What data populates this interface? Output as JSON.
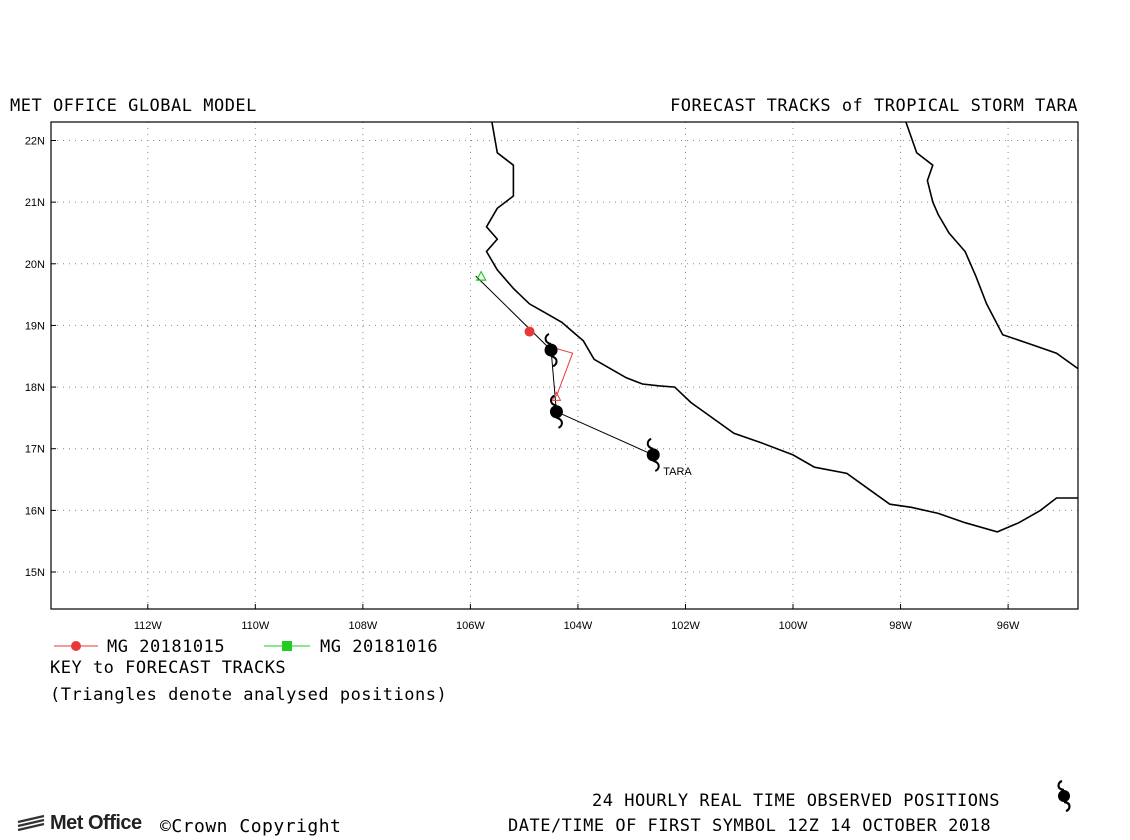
{
  "header": {
    "left_title": "MET OFFICE GLOBAL MODEL",
    "right_title": "FORECAST TRACKS of TROPICAL STORM TARA"
  },
  "map": {
    "lon_range": [
      -113.8,
      -94.7
    ],
    "lat_range": [
      14.4,
      22.3
    ],
    "lat_ticks": [
      "15N",
      "16N",
      "17N",
      "18N",
      "19N",
      "20N",
      "21N",
      "22N"
    ],
    "lon_ticks": [
      "112W",
      "110W",
      "108W",
      "106W",
      "104W",
      "102W",
      "100W",
      "98W",
      "96W"
    ],
    "grid": true,
    "storm_label": "TARA",
    "colors": {
      "mg_20181015": "#e8393a",
      "mg_20181016": "#22cc22",
      "observed": "#000000",
      "coast": "#000000"
    }
  },
  "tracks": {
    "observed": [
      [
        -102.6,
        16.9
      ],
      [
        -104.4,
        17.6
      ],
      [
        -104.5,
        18.6
      ]
    ],
    "analysed_line": [
      [
        -104.5,
        18.6
      ],
      [
        -105.9,
        19.8
      ]
    ],
    "mg_20181015": {
      "start": [
        -104.9,
        18.9
      ],
      "line": [
        [
          -104.5,
          18.65
        ],
        [
          -104.1,
          18.55
        ],
        [
          -104.4,
          17.85
        ]
      ]
    },
    "mg_20181016": {
      "analysed_triangle": [
        -105.8,
        19.8
      ]
    }
  },
  "legend": {
    "items": [
      {
        "label": "MG 20181015",
        "color": "#e8393a",
        "marker": "circle"
      },
      {
        "label": "MG 20181016",
        "color": "#22cc22",
        "marker": "square"
      }
    ],
    "key_title": "KEY to FORECAST TRACKS",
    "key_note": "(Triangles denote analysed positions)"
  },
  "footer": {
    "logo_text": "Met Office",
    "copyright": "©Crown Copyright",
    "observed_note": "24 HOURLY REAL TIME OBSERVED POSITIONS",
    "datetime_note": "DATE/TIME OF FIRST SYMBOL 12Z 14 OCTOBER 2018"
  }
}
